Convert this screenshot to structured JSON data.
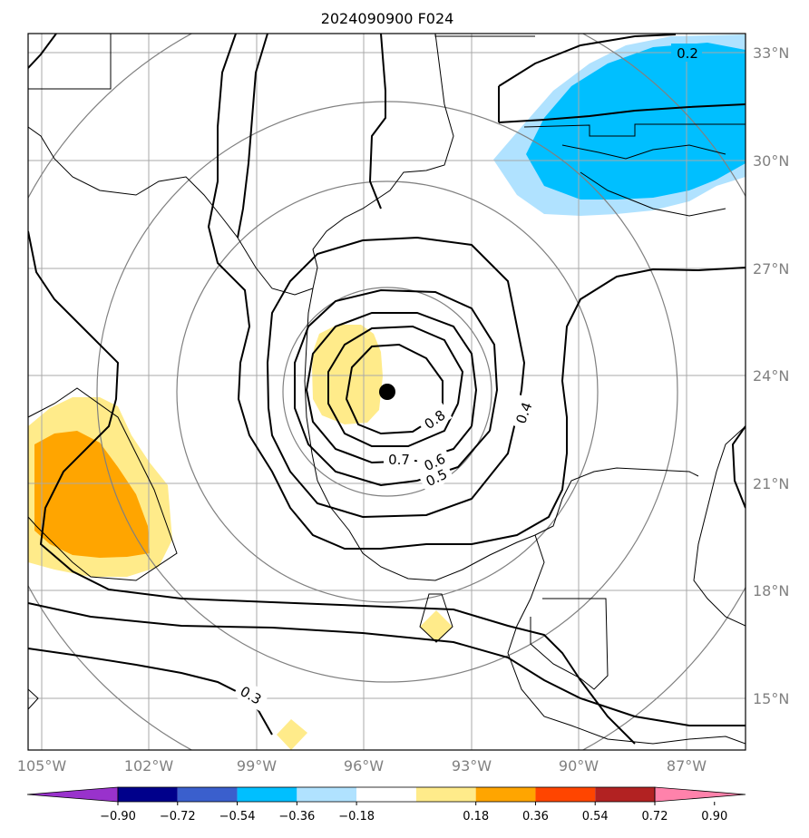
{
  "title": "2024090900 F024",
  "map": {
    "lon_labels": [
      "105°W",
      "102°W",
      "99°W",
      "96°W",
      "93°W",
      "90°W",
      "87°W"
    ],
    "lat_labels": [
      "33°N",
      "30°N",
      "27°N",
      "24°N",
      "21°N",
      "18°N",
      "15°N"
    ],
    "contour_labels": [
      "0.2",
      "0.3",
      "0.4",
      "0.5",
      "0.6",
      "0.7",
      "0.8"
    ],
    "center_marker": "storm-center"
  },
  "colorbar": {
    "ticks": [
      "−0.90",
      "−0.72",
      "−0.54",
      "−0.36",
      "−0.18",
      "0.18",
      "0.36",
      "0.54",
      "0.72",
      "0.90"
    ],
    "colors": [
      "#9932cc",
      "#00008b",
      "#3a5fcd",
      "#00bfff",
      "#b0e2ff",
      "#ffffff",
      "#ffeb8a",
      "#ffa500",
      "#ff4500",
      "#b22222",
      "#ff82ab"
    ]
  }
}
